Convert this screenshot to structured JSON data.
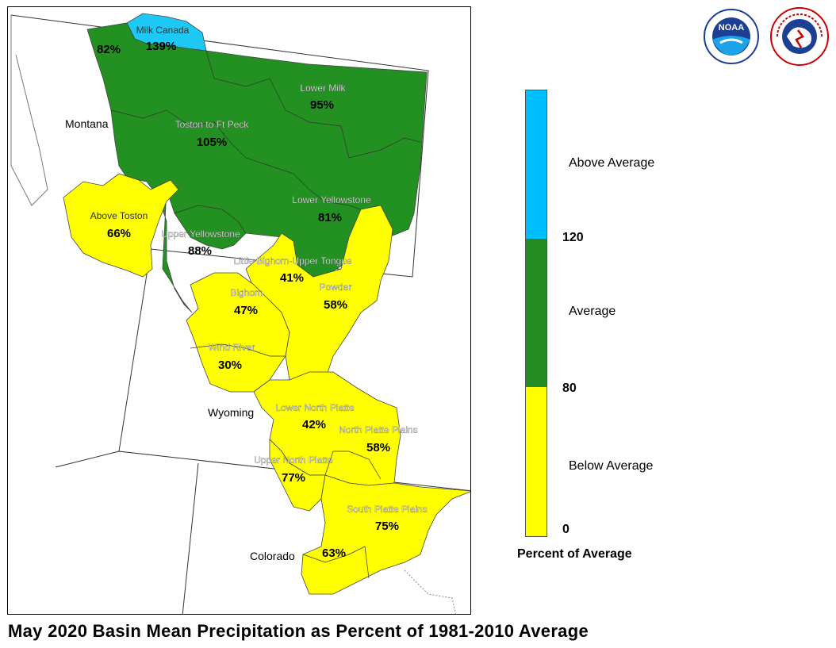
{
  "title": "May 2020 Basin Mean Precipitation as Percent of 1981-2010 Average",
  "states": [
    {
      "name": "Montana"
    },
    {
      "name": "Wyoming"
    },
    {
      "name": "Colorado"
    }
  ],
  "basins": [
    {
      "name": "Milk Canada",
      "value": "139%",
      "percent": 139,
      "category": "above"
    },
    {
      "name": "",
      "value": "82%",
      "percent": 82,
      "category": "average"
    },
    {
      "name": "Lower Milk",
      "value": "95%",
      "percent": 95,
      "category": "average"
    },
    {
      "name": "Toston to Ft Peck",
      "value": "105%",
      "percent": 105,
      "category": "average"
    },
    {
      "name": "Lower Yellowstone",
      "value": "81%",
      "percent": 81,
      "category": "average"
    },
    {
      "name": "Above Toston",
      "value": "66%",
      "percent": 66,
      "category": "below"
    },
    {
      "name": "Upper Yellowstone",
      "value": "88%",
      "percent": 88,
      "category": "average"
    },
    {
      "name": "Little Bighorn-Upper Tongue",
      "value": "41%",
      "percent": 41,
      "category": "below"
    },
    {
      "name": "Bighorn",
      "value": "47%",
      "percent": 47,
      "category": "below"
    },
    {
      "name": "Powder",
      "value": "58%",
      "percent": 58,
      "category": "below"
    },
    {
      "name": "Wind River",
      "value": "30%",
      "percent": 30,
      "category": "below"
    },
    {
      "name": "Lower North Platte",
      "value": "42%",
      "percent": 42,
      "category": "below"
    },
    {
      "name": "North Platte Plains",
      "value": "58%",
      "percent": 58,
      "category": "below"
    },
    {
      "name": "Upper North Platte",
      "value": "77%",
      "percent": 77,
      "category": "below"
    },
    {
      "name": "South Platte Plains",
      "value": "75%",
      "percent": 75,
      "category": "below"
    },
    {
      "name": "",
      "value": "63%",
      "percent": 63,
      "category": "below"
    }
  ],
  "legend": {
    "title": "Percent of Average",
    "categories": [
      {
        "label": "Above Average",
        "color": "#00bfff"
      },
      {
        "label": "Average",
        "color": "#228b22"
      },
      {
        "label": "Below Average",
        "color": "#ffff00"
      }
    ],
    "ticks": [
      "120",
      "80",
      "0"
    ]
  },
  "colors": {
    "above": "#1ec8f5",
    "average": "#229122",
    "below": "#ffff00"
  },
  "logos": [
    {
      "name": "noaa-logo",
      "text": "NOAA"
    },
    {
      "name": "nws-logo",
      "text": "NATIONAL WEATHER SERVICE"
    }
  ]
}
